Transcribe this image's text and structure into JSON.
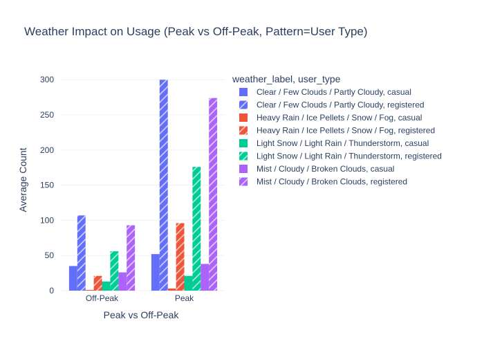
{
  "chart_data": {
    "type": "bar",
    "title": "Weather Impact on Usage (Peak vs Off-Peak, Pattern=User Type)",
    "xlabel": "Peak vs Off-Peak",
    "ylabel": "Average Count",
    "categories": [
      "Off-Peak",
      "Peak"
    ],
    "ylim": [
      0,
      315
    ],
    "yticks": [
      0,
      50,
      100,
      150,
      200,
      250,
      300
    ],
    "grid": true,
    "legend_title": "weather_label, user_type",
    "legend_position": "right",
    "series": [
      {
        "name": "Clear / Few Clouds / Partly Cloudy, casual",
        "values": [
          35,
          52
        ],
        "color": "#636efa",
        "pattern": "none"
      },
      {
        "name": "Clear / Few Clouds / Partly Cloudy, registered",
        "values": [
          107,
          300
        ],
        "color": "#636efa",
        "pattern": "hatch"
      },
      {
        "name": "Heavy Rain / Ice Pellets / Snow / Fog, casual",
        "values": [
          1,
          3
        ],
        "color": "#ef553b",
        "pattern": "none"
      },
      {
        "name": "Heavy Rain / Ice Pellets / Snow / Fog, registered",
        "values": [
          21,
          96
        ],
        "color": "#ef553b",
        "pattern": "hatch"
      },
      {
        "name": "Light Snow / Light Rain / Thunderstorm, casual",
        "values": [
          13,
          21
        ],
        "color": "#00cc96",
        "pattern": "none"
      },
      {
        "name": "Light Snow / Light Rain / Thunderstorm, registered",
        "values": [
          56,
          176
        ],
        "color": "#00cc96",
        "pattern": "hatch"
      },
      {
        "name": "Mist / Cloudy / Broken Clouds, casual",
        "values": [
          26,
          38
        ],
        "color": "#ab63fa",
        "pattern": "none"
      },
      {
        "name": "Mist / Cloudy / Broken Clouds, registered",
        "values": [
          93,
          274
        ],
        "color": "#ab63fa",
        "pattern": "hatch"
      }
    ]
  }
}
